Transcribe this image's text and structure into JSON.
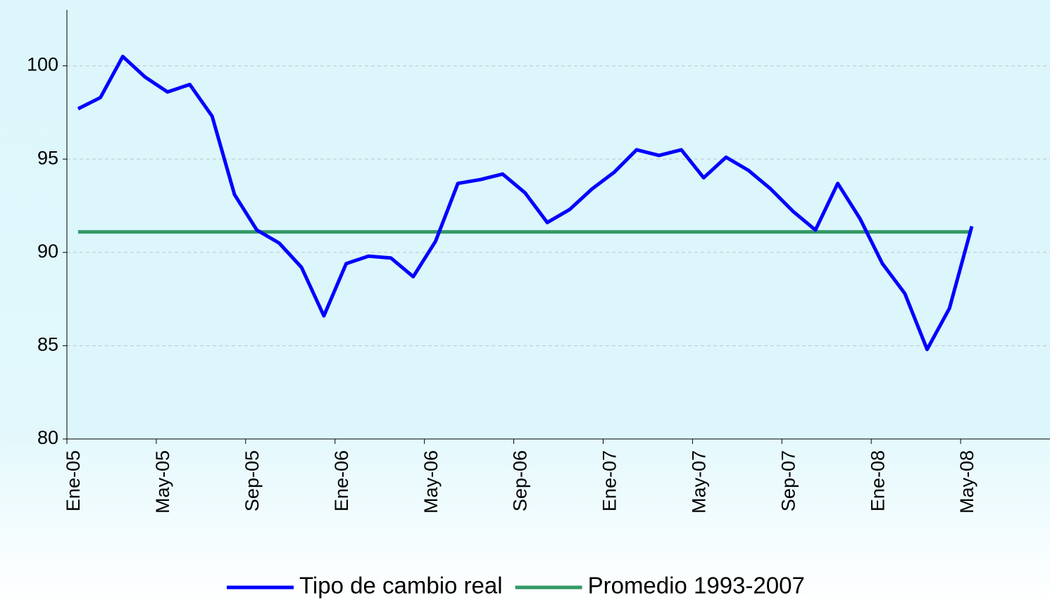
{
  "chart_data": {
    "type": "line",
    "categories": [
      "Ene-05",
      null,
      null,
      null,
      "May-05",
      null,
      null,
      null,
      "Sep-05",
      null,
      null,
      null,
      "Ene-06",
      null,
      null,
      null,
      "May-06",
      null,
      null,
      null,
      "Sep-06",
      null,
      null,
      null,
      "Ene-07",
      null,
      null,
      null,
      "May-07",
      null,
      null,
      null,
      "Sep-07",
      null,
      null,
      null,
      "Ene-08",
      null,
      null,
      null,
      "May-08",
      null,
      null,
      null
    ],
    "series": [
      {
        "name": "Tipo de cambio real",
        "color": "#0000ff",
        "values": [
          97.7,
          98.3,
          100.5,
          99.4,
          98.6,
          99.0,
          97.3,
          93.1,
          91.2,
          90.5,
          89.2,
          86.6,
          89.4,
          89.8,
          89.7,
          88.7,
          90.6,
          93.7,
          93.9,
          94.2,
          93.2,
          91.6,
          92.3,
          93.4,
          94.3,
          95.5,
          95.2,
          95.5,
          94.0,
          95.1,
          94.4,
          93.4,
          92.2,
          91.2,
          93.7,
          91.8,
          89.4,
          87.8,
          84.8,
          87.0,
          91.4,
          null,
          null,
          null
        ]
      },
      {
        "name": "Promedio 1993-2007",
        "color": "#339966",
        "values": [
          91.1,
          91.1,
          91.1,
          91.1,
          91.1,
          91.1,
          91.1,
          91.1,
          91.1,
          91.1,
          91.1,
          91.1,
          91.1,
          91.1,
          91.1,
          91.1,
          91.1,
          91.1,
          91.1,
          91.1,
          91.1,
          91.1,
          91.1,
          91.1,
          91.1,
          91.1,
          91.1,
          91.1,
          91.1,
          91.1,
          91.1,
          91.1,
          91.1,
          91.1,
          91.1,
          91.1,
          91.1,
          91.1,
          91.1,
          91.1,
          91.1,
          null,
          null,
          null
        ]
      }
    ],
    "ylim": [
      80,
      103
    ],
    "yticks": [
      80,
      85,
      90,
      95,
      100
    ],
    "grid": true,
    "legend": "bottom"
  }
}
